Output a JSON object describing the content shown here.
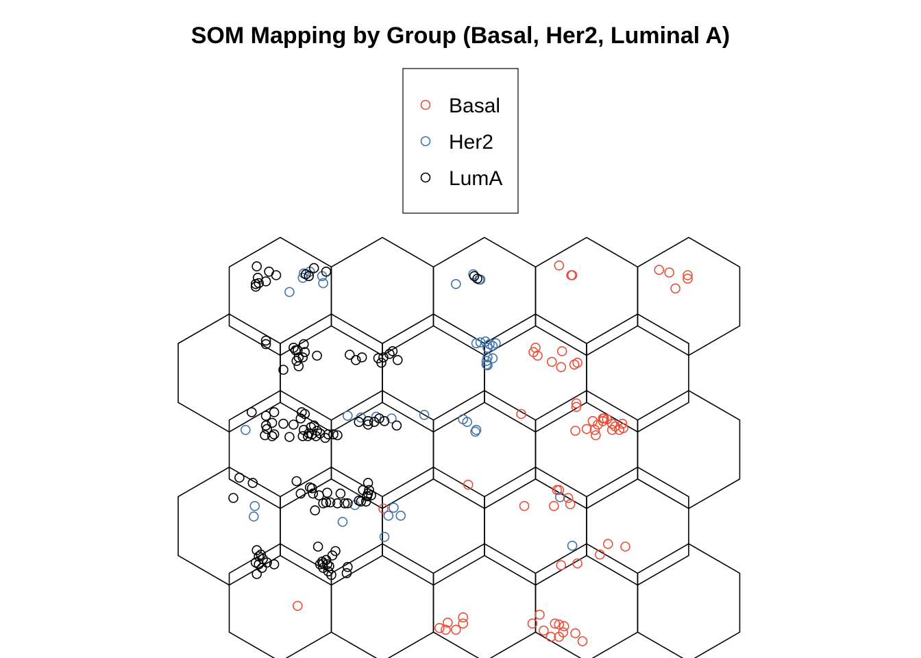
{
  "chart_data": {
    "type": "scatter",
    "title": "SOM Mapping by Group (Basal, Her2, Luminal A)",
    "grid": {
      "layout": "hexagonal",
      "columns": 5,
      "rows": 5
    },
    "legend": {
      "placement": "top-center",
      "entries": [
        {
          "name": "Basal",
          "color": "#EE4B34"
        },
        {
          "name": "Her2",
          "color": "#4272A8"
        },
        {
          "name": "LumA",
          "color": "#000000"
        }
      ]
    },
    "series": [
      {
        "name": "Basal",
        "color": "#EE4B34",
        "points": [
          [
            3.73,
            4.68
          ],
          [
            3.85,
            4.57
          ],
          [
            3.86,
            4.57
          ],
          [
            4.71,
            4.63
          ],
          [
            4.81,
            4.6
          ],
          [
            4.99,
            4.57
          ],
          [
            4.99,
            4.53
          ],
          [
            4.87,
            4.42
          ],
          [
            3.5,
            3.75
          ],
          [
            3.48,
            3.7
          ],
          [
            3.52,
            3.66
          ],
          [
            3.76,
            3.71
          ],
          [
            3.66,
            3.59
          ],
          [
            3.75,
            3.53
          ],
          [
            3.88,
            3.56
          ],
          [
            3.91,
            3.58
          ],
          [
            3.36,
            3.0
          ],
          [
            3.9,
            3.08
          ],
          [
            3.9,
            3.12
          ],
          [
            4.06,
            2.92
          ],
          [
            4.17,
            2.95
          ],
          [
            4.16,
            2.95
          ],
          [
            4.0,
            2.83
          ],
          [
            4.08,
            2.82
          ],
          [
            3.89,
            2.81
          ],
          [
            4.25,
            2.89
          ],
          [
            4.28,
            2.86
          ],
          [
            4.36,
            2.84
          ],
          [
            4.2,
            2.94
          ],
          [
            4.16,
            2.92
          ],
          [
            4.11,
            2.88
          ],
          [
            4.32,
            2.82
          ],
          [
            4.25,
            2.82
          ],
          [
            4.35,
            2.89
          ],
          [
            4.09,
            2.76
          ],
          [
            3.73,
            2.14
          ],
          [
            3.71,
            2.14
          ],
          [
            3.82,
            2.05
          ],
          [
            3.84,
            1.98
          ],
          [
            3.68,
            1.96
          ],
          [
            2.84,
            2.2
          ],
          [
            3.39,
            1.96
          ],
          [
            2.01,
            1.93
          ],
          [
            4.21,
            1.53
          ],
          [
            4.38,
            1.5
          ],
          [
            4.13,
            1.41
          ],
          [
            3.91,
            1.31
          ],
          [
            3.75,
            1.29
          ],
          [
            1.17,
            0.83
          ],
          [
            2.79,
            0.7
          ],
          [
            2.79,
            0.63
          ],
          [
            2.64,
            0.64
          ],
          [
            2.56,
            0.58
          ],
          [
            2.72,
            0.56
          ],
          [
            2.62,
            0.56
          ],
          [
            3.54,
            0.73
          ],
          [
            3.47,
            0.63
          ],
          [
            3.78,
            0.6
          ],
          [
            3.73,
            0.62
          ],
          [
            3.69,
            0.63
          ],
          [
            3.77,
            0.53
          ],
          [
            3.89,
            0.52
          ],
          [
            3.58,
            0.55
          ],
          [
            3.65,
            0.48
          ],
          [
            3.73,
            0.48
          ],
          [
            3.96,
            0.43
          ]
        ]
      },
      {
        "name": "Her2",
        "color": "#4272A8",
        "points": [
          [
            1.23,
            4.59
          ],
          [
            1.29,
            4.61
          ],
          [
            1.41,
            4.56
          ],
          [
            1.22,
            4.54
          ],
          [
            1.42,
            4.48
          ],
          [
            1.09,
            4.38
          ],
          [
            2.89,
            4.58
          ],
          [
            2.95,
            4.52
          ],
          [
            2.96,
            4.52
          ],
          [
            2.72,
            4.47
          ],
          [
            3.01,
            3.82
          ],
          [
            2.96,
            3.81
          ],
          [
            2.92,
            3.8
          ],
          [
            3.08,
            3.77
          ],
          [
            3.11,
            3.8
          ],
          [
            3.05,
            3.79
          ],
          [
            3.03,
            3.75
          ],
          [
            3.03,
            3.64
          ],
          [
            3.08,
            3.63
          ],
          [
            3.03,
            3.55
          ],
          [
            3.02,
            3.56
          ],
          [
            3.02,
            3.6
          ],
          [
            0.66,
            2.82
          ],
          [
            1.66,
            2.98
          ],
          [
            1.79,
            2.96
          ],
          [
            2.09,
            2.95
          ],
          [
            1.94,
            2.97
          ],
          [
            2.41,
            2.99
          ],
          [
            2.79,
            2.94
          ],
          [
            2.92,
            2.82
          ],
          [
            2.83,
            2.91
          ],
          [
            2.91,
            2.8
          ],
          [
            3.86,
            1.51
          ],
          [
            3.74,
            2.06
          ],
          [
            0.75,
            1.96
          ],
          [
            0.74,
            1.84
          ],
          [
            1.73,
            1.97
          ],
          [
            2.11,
            1.94
          ],
          [
            2.18,
            1.85
          ],
          [
            2.06,
            1.85
          ],
          [
            1.61,
            1.78
          ],
          [
            2.02,
            1.61
          ]
        ]
      },
      {
        "name": "LumA",
        "color": "#000000",
        "points": [
          [
            0.77,
            4.67
          ],
          [
            0.89,
            4.61
          ],
          [
            0.96,
            4.57
          ],
          [
            0.78,
            4.54
          ],
          [
            0.86,
            4.5
          ],
          [
            0.79,
            4.48
          ],
          [
            0.76,
            4.47
          ],
          [
            0.76,
            4.44
          ],
          [
            1.33,
            4.65
          ],
          [
            1.25,
            4.58
          ],
          [
            1.45,
            4.61
          ],
          [
            1.28,
            4.56
          ],
          [
            2.9,
            4.56
          ],
          [
            2.93,
            4.53
          ],
          [
            0.86,
            3.83
          ],
          [
            0.86,
            3.79
          ],
          [
            1.23,
            3.79
          ],
          [
            1.15,
            3.72
          ],
          [
            1.13,
            3.75
          ],
          [
            1.17,
            3.72
          ],
          [
            1.24,
            3.7
          ],
          [
            1.36,
            3.66
          ],
          [
            1.22,
            3.64
          ],
          [
            1.18,
            3.64
          ],
          [
            1.16,
            3.6
          ],
          [
            1.03,
            3.5
          ],
          [
            1.18,
            3.54
          ],
          [
            1.68,
            3.67
          ],
          [
            1.8,
            3.64
          ],
          [
            1.74,
            3.61
          ],
          [
            1.99,
            3.58
          ],
          [
            2.07,
            3.68
          ],
          [
            2.1,
            3.71
          ],
          [
            1.96,
            3.63
          ],
          [
            2.01,
            3.64
          ],
          [
            2.15,
            3.61
          ],
          [
            0.72,
            3.02
          ],
          [
            0.94,
            3.02
          ],
          [
            0.86,
            2.98
          ],
          [
            0.92,
            2.9
          ],
          [
            0.86,
            2.87
          ],
          [
            0.87,
            2.83
          ],
          [
            0.94,
            2.77
          ],
          [
            0.85,
            2.76
          ],
          [
            0.92,
            2.75
          ],
          [
            1.09,
            2.74
          ],
          [
            1.21,
            3.02
          ],
          [
            1.24,
            3.0
          ],
          [
            1.2,
            2.95
          ],
          [
            1.03,
            2.89
          ],
          [
            1.13,
            2.88
          ],
          [
            1.3,
            2.85
          ],
          [
            1.33,
            2.87
          ],
          [
            1.23,
            2.82
          ],
          [
            1.28,
            2.78
          ],
          [
            1.27,
            2.75
          ],
          [
            1.22,
            2.75
          ],
          [
            1.31,
            2.77
          ],
          [
            1.36,
            2.81
          ],
          [
            1.39,
            2.78
          ],
          [
            1.35,
            2.75
          ],
          [
            1.52,
            2.77
          ],
          [
            1.44,
            2.73
          ],
          [
            1.47,
            2.77
          ],
          [
            1.56,
            2.76
          ],
          [
            1.77,
            2.91
          ],
          [
            1.86,
            2.88
          ],
          [
            1.92,
            2.91
          ],
          [
            1.97,
            2.95
          ],
          [
            1.86,
            2.92
          ],
          [
            2.02,
            2.92
          ],
          [
            2.14,
            2.87
          ],
          [
            0.6,
            2.28
          ],
          [
            0.73,
            2.22
          ],
          [
            0.54,
            2.05
          ],
          [
            1.16,
            2.24
          ],
          [
            1.29,
            2.17
          ],
          [
            1.31,
            2.16
          ],
          [
            1.2,
            2.1
          ],
          [
            1.32,
            2.1
          ],
          [
            1.38,
            2.08
          ],
          [
            1.46,
            2.11
          ],
          [
            1.59,
            2.1
          ],
          [
            1.45,
            2.0
          ],
          [
            1.42,
            1.99
          ],
          [
            1.49,
            2.0
          ],
          [
            1.66,
            1.99
          ],
          [
            1.63,
            1.99
          ],
          [
            1.56,
            1.99
          ],
          [
            1.34,
            1.91
          ],
          [
            1.86,
            2.22
          ],
          [
            1.87,
            2.14
          ],
          [
            1.85,
            2.07
          ],
          [
            1.89,
            2.08
          ],
          [
            1.85,
            2.07
          ],
          [
            1.81,
            2.14
          ],
          [
            1.86,
            2.1
          ],
          [
            1.77,
            2.02
          ],
          [
            1.79,
            2.01
          ],
          [
            1.84,
            2.01
          ],
          [
            0.77,
            1.46
          ],
          [
            0.81,
            1.41
          ],
          [
            0.79,
            1.39
          ],
          [
            0.83,
            1.36
          ],
          [
            0.76,
            1.32
          ],
          [
            0.79,
            1.3
          ],
          [
            0.82,
            1.26
          ],
          [
            0.77,
            1.19
          ],
          [
            0.87,
            1.32
          ],
          [
            0.94,
            1.3
          ],
          [
            1.37,
            1.5
          ],
          [
            1.54,
            1.45
          ],
          [
            1.51,
            1.4
          ],
          [
            1.45,
            1.35
          ],
          [
            1.41,
            1.33
          ],
          [
            1.42,
            1.31
          ],
          [
            1.39,
            1.3
          ],
          [
            1.46,
            1.3
          ],
          [
            1.48,
            1.28
          ],
          [
            1.42,
            1.26
          ],
          [
            1.47,
            1.22
          ],
          [
            1.66,
            1.27
          ],
          [
            1.5,
            1.18
          ],
          [
            1.65,
            1.2
          ]
        ]
      }
    ]
  }
}
